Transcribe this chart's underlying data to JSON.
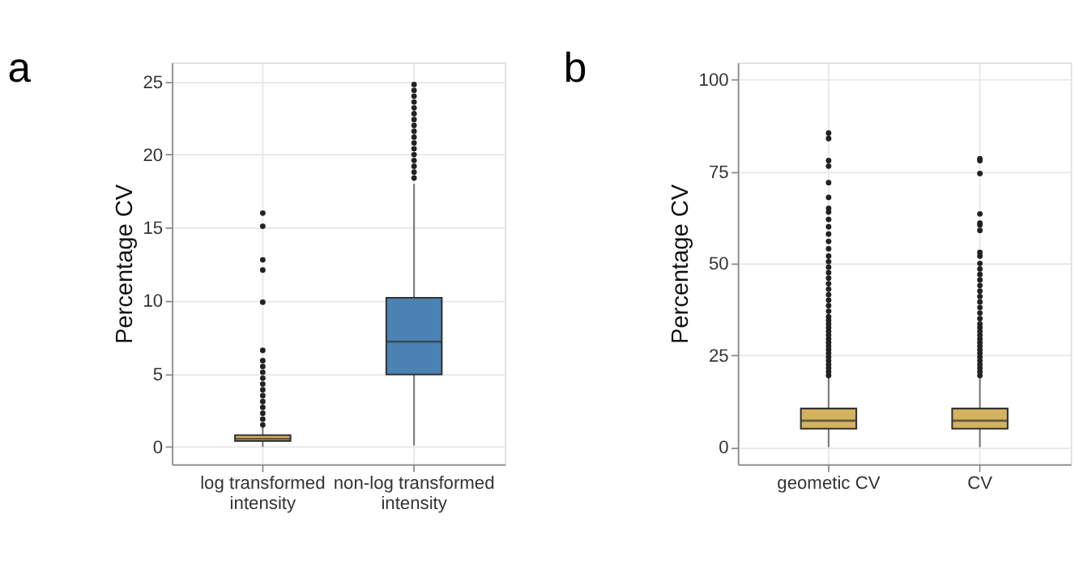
{
  "chart_data": [
    {
      "type": "box",
      "title": "a",
      "ylabel": "Percentage CV",
      "categories": [
        "log transformed intensity",
        "non-log transformed intensity"
      ],
      "colors": [
        "#d4b35c",
        "#4a82b4"
      ],
      "boxes": [
        {
          "low": 0,
          "q1": 0.4,
          "median": 0.55,
          "q3": 0.8,
          "high": 1.4,
          "outliers": [
            1.5,
            1.9,
            2.3,
            2.7,
            3.1,
            3.5,
            3.9,
            4.3,
            4.7,
            5.1,
            5.5,
            5.9,
            6.6,
            9.9,
            12.1,
            12.8,
            15.1,
            16.0
          ]
        },
        {
          "low": 0.1,
          "q1": 4.95,
          "median": 7.2,
          "q3": 10.2,
          "high": 18.0,
          "outliers": [
            18.4,
            18.8,
            19.2,
            19.6,
            20.0,
            20.4,
            20.8,
            21.2,
            21.6,
            22.0,
            22.4,
            22.8,
            23.2,
            23.6,
            24.0,
            24.4,
            24.8
          ]
        }
      ],
      "ylim": [
        -1.2,
        26.3
      ],
      "yticks": [
        0,
        5,
        10,
        15,
        20,
        25
      ],
      "grid": true
    },
    {
      "type": "box",
      "title": "b",
      "ylabel": "Percentage CV",
      "categories": [
        "geometic CV",
        "CV"
      ],
      "colors": [
        "#d4b35c",
        "#d4b35c"
      ],
      "boxes": [
        {
          "low": 0,
          "q1": 5,
          "median": 7.2,
          "q3": 10.5,
          "high": 19,
          "outliers": [
            19.5,
            20.5,
            21.5,
            22.5,
            23.5,
            24.5,
            25.5,
            26.5,
            27.5,
            28.5,
            29.5,
            30.5,
            31.5,
            32.5,
            33.5,
            34.5,
            35.5,
            37,
            38.5,
            40,
            41.5,
            43,
            44.5,
            46,
            47.5,
            49,
            50.5,
            52,
            54,
            56,
            58,
            60,
            62,
            64,
            65,
            68,
            72,
            76.5,
            78,
            84,
            85.5
          ]
        },
        {
          "low": 0,
          "q1": 5,
          "median": 7.2,
          "q3": 10.5,
          "high": 19,
          "outliers": [
            19.5,
            20.5,
            21.5,
            22.5,
            23.5,
            24.5,
            25.5,
            26.5,
            27.5,
            28.5,
            29.5,
            30.5,
            31.5,
            32.5,
            33.5,
            35,
            36.5,
            38,
            39.5,
            41,
            42.5,
            44,
            45.5,
            47,
            48.5,
            50,
            52,
            53,
            59,
            60.5,
            61,
            63.5,
            74.5,
            78,
            78.5
          ]
        }
      ],
      "ylim": [
        -4.7,
        104.7
      ],
      "yticks": [
        0,
        25,
        50,
        75,
        100
      ],
      "grid": true
    }
  ]
}
